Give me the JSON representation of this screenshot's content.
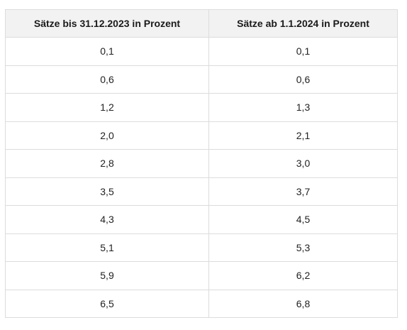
{
  "table": {
    "headers": [
      "Sätze bis 31.12.2023 in Prozent",
      "Sätze ab 1.1.2024 in Prozent"
    ],
    "rows": [
      [
        "0,1",
        "0,1"
      ],
      [
        "0,6",
        "0,6"
      ],
      [
        "1,2",
        "1,3"
      ],
      [
        "2,0",
        "2,1"
      ],
      [
        "2,8",
        "3,0"
      ],
      [
        "3,5",
        "3,7"
      ],
      [
        "4,3",
        "4,5"
      ],
      [
        "5,1",
        "5,3"
      ],
      [
        "5,9",
        "6,2"
      ],
      [
        "6,5",
        "6,8"
      ]
    ]
  }
}
